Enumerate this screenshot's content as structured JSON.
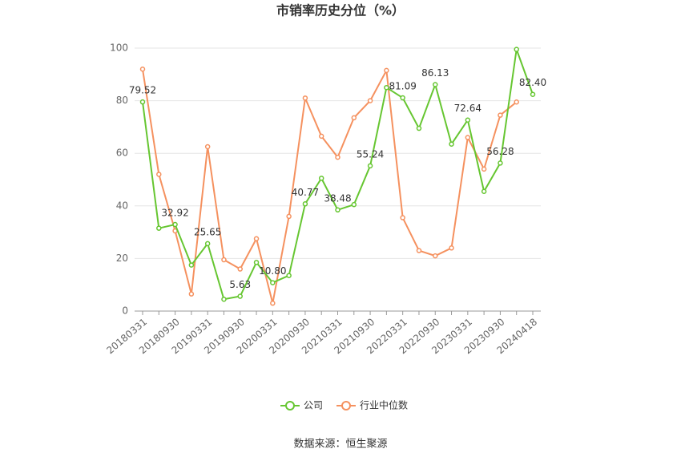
{
  "chart_data": {
    "type": "line",
    "title": "市销率历史分位（%）",
    "categories": [
      "20180331",
      null,
      "20180930",
      null,
      "20190331",
      null,
      "20190930",
      null,
      "20200331",
      null,
      "20200930",
      null,
      "20210331",
      null,
      "20210930",
      null,
      "20220331",
      null,
      "20220930",
      null,
      "20230331",
      null,
      "20230930",
      null,
      "20240418"
    ],
    "series": [
      {
        "name": "公司",
        "color": "#66c631",
        "values": [
          79.52,
          31.5,
          32.92,
          17.5,
          25.65,
          4.5,
          5.63,
          18.5,
          10.8,
          13.5,
          40.77,
          50.5,
          38.48,
          40.5,
          55.24,
          85,
          81.09,
          69.5,
          86.13,
          63.5,
          72.64,
          45.5,
          56.28,
          99.5,
          82.4
        ],
        "value_labels": [
          "79.52",
          null,
          "32.92",
          null,
          "25.65",
          null,
          "5.63",
          null,
          "10.80",
          null,
          "40.77",
          null,
          "38.48",
          null,
          "55.24",
          null,
          "81.09",
          null,
          "86.13",
          null,
          "72.64",
          null,
          "56.28",
          null,
          "82.40"
        ]
      },
      {
        "name": "行业中位数",
        "color": "#f5915f",
        "values": [
          92,
          52,
          30.5,
          6.5,
          62.5,
          19.5,
          16,
          27.5,
          3,
          36,
          81,
          66.5,
          58.5,
          73.5,
          80,
          91.5,
          35.5,
          23,
          21,
          24,
          66,
          54,
          74.5,
          79.5,
          null
        ]
      }
    ],
    "ylim": [
      0,
      100
    ],
    "yticks": [
      0,
      20,
      40,
      60,
      80,
      100
    ],
    "grid": true,
    "source": "数据来源：恒生聚源"
  }
}
